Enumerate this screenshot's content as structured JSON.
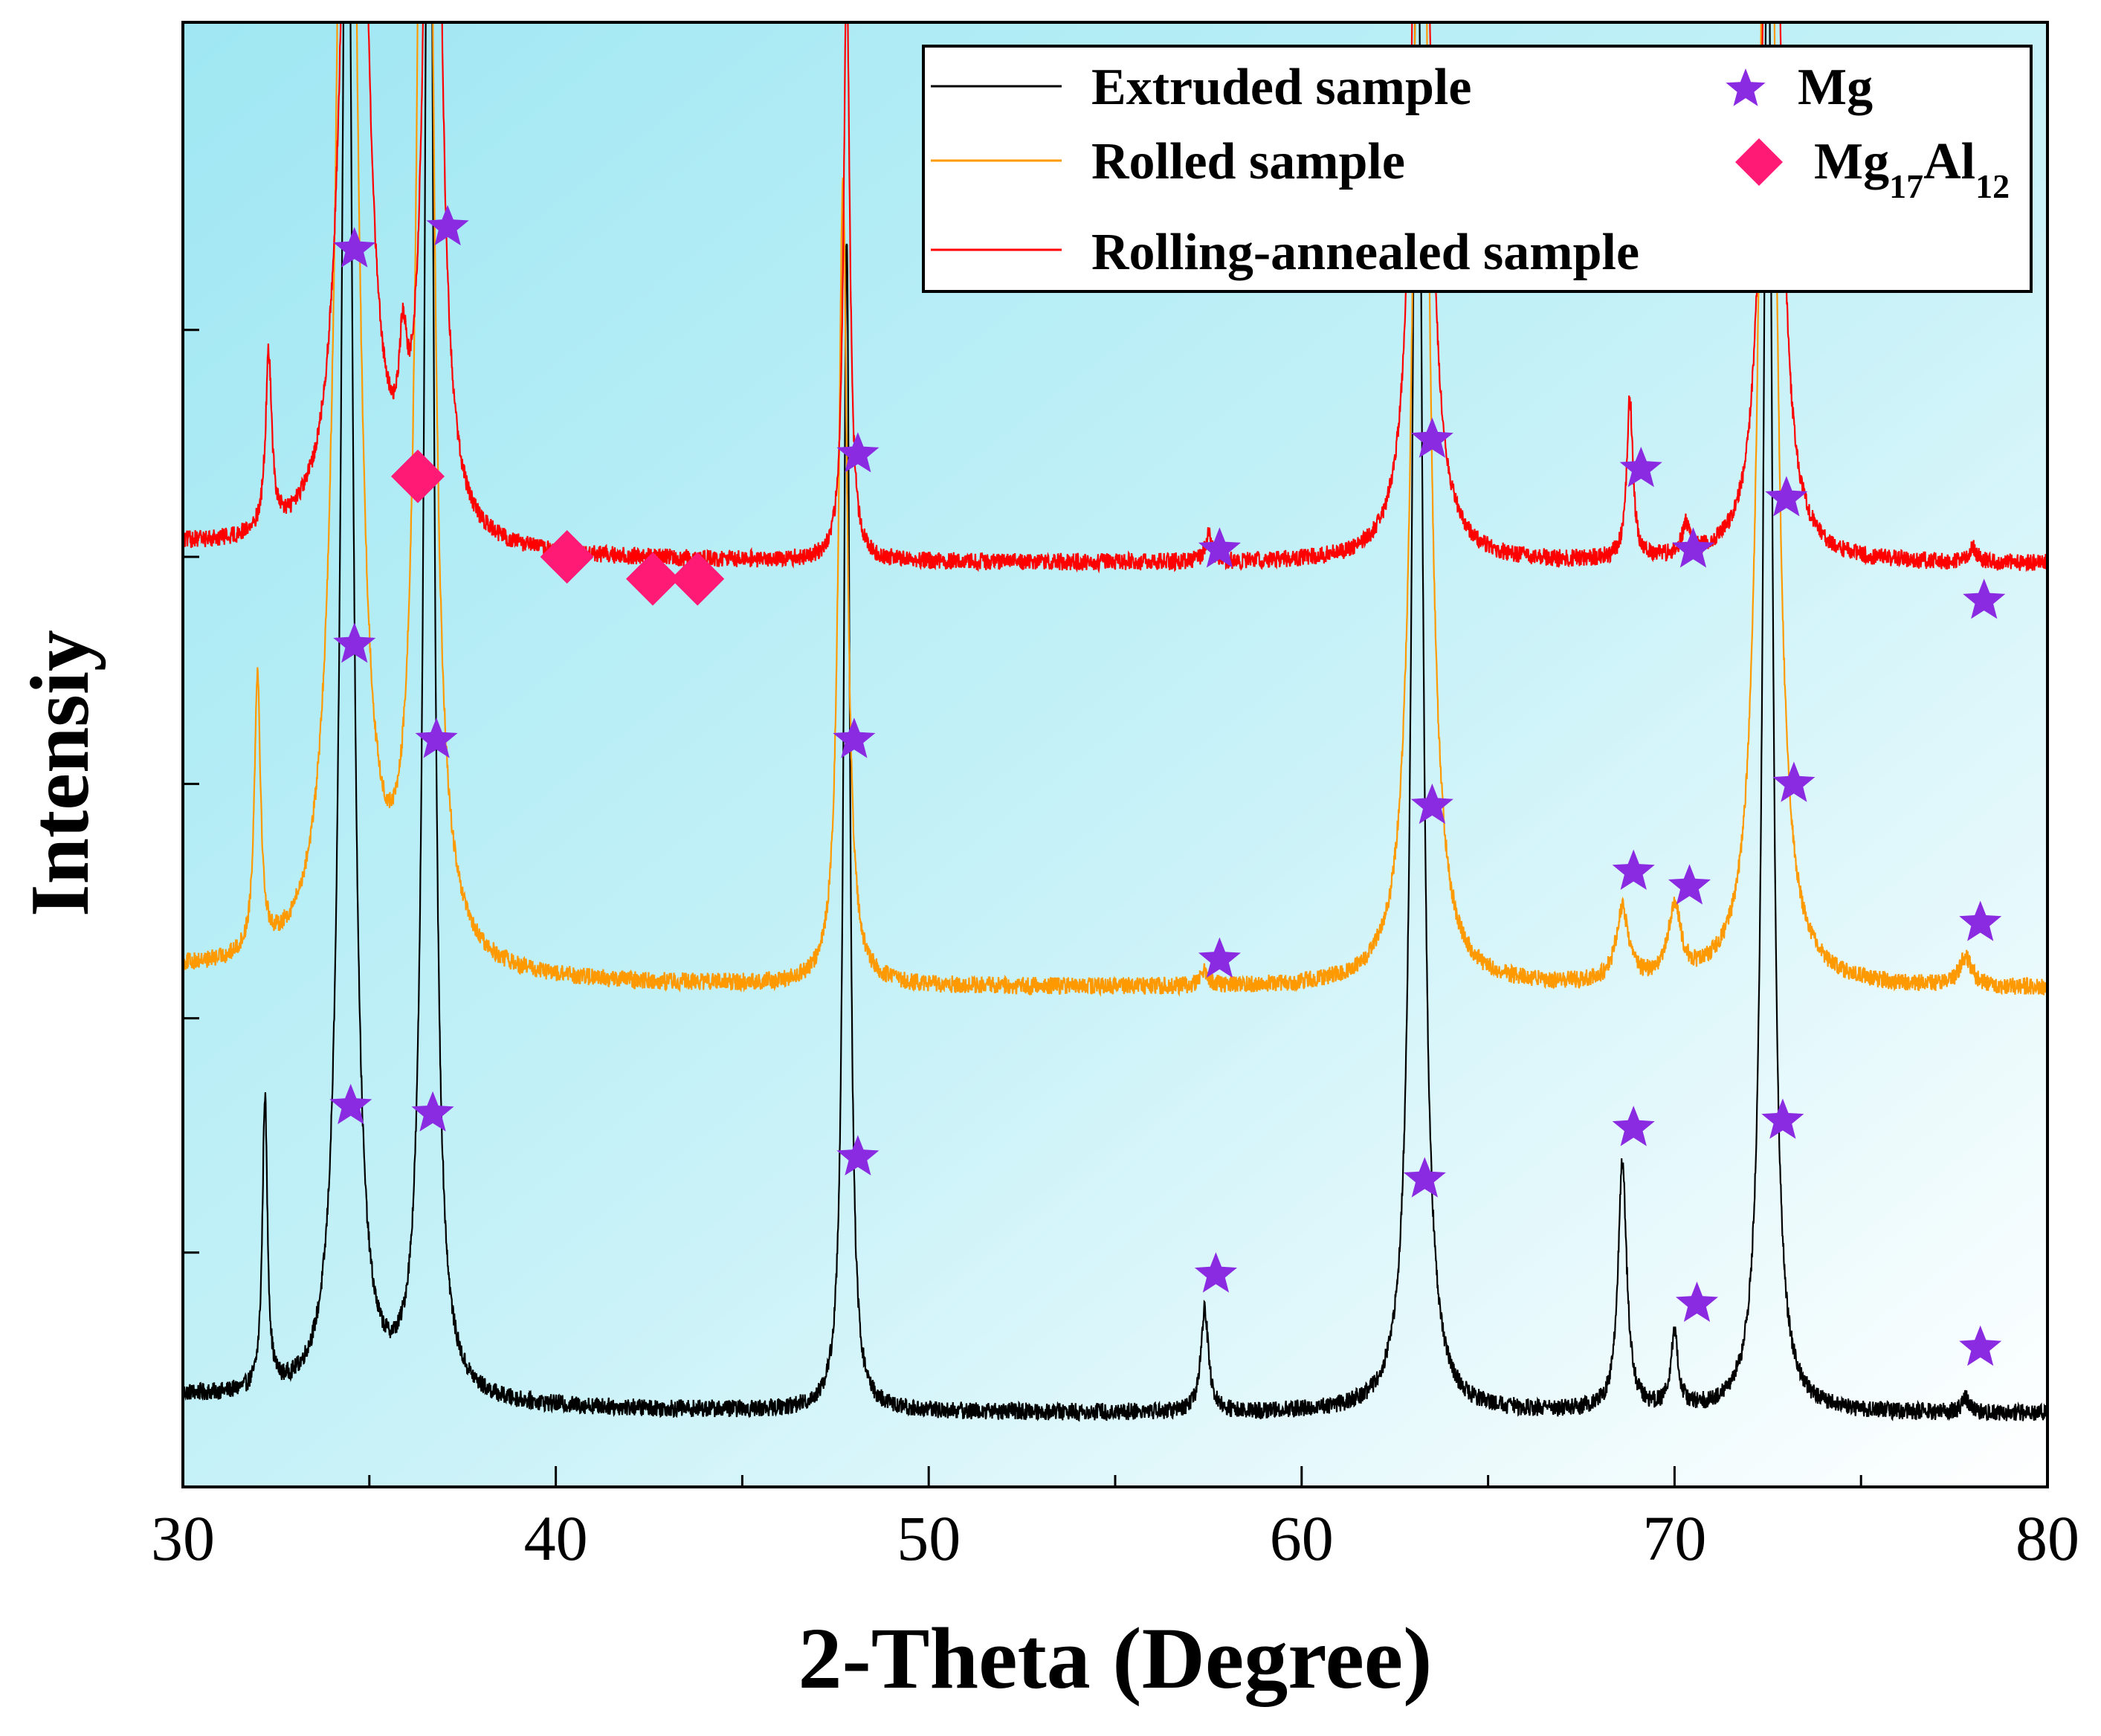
{
  "chart_data": {
    "type": "line",
    "title": "",
    "xlabel": "2-Theta (Degree)",
    "ylabel": "Intensiy",
    "xlim": [
      30,
      80
    ],
    "xticks": [
      30,
      40,
      50,
      60,
      70,
      80
    ],
    "yticks_labeled": false,
    "background": "gradient cyan to white",
    "series": [
      {
        "name": "Extruded sample",
        "color": "#000000",
        "baseline": 0.05,
        "peaks": [
          {
            "x": 32.2,
            "h": 0.2,
            "w": 0.08
          },
          {
            "x": 34.4,
            "h": 1.2,
            "w": 0.18
          },
          {
            "x": 36.6,
            "h": 1.3,
            "w": 0.14
          },
          {
            "x": 47.8,
            "h": 0.8,
            "w": 0.1
          },
          {
            "x": 57.4,
            "h": 0.07,
            "w": 0.12
          },
          {
            "x": 63.1,
            "h": 1.1,
            "w": 0.16
          },
          {
            "x": 68.6,
            "h": 0.17,
            "w": 0.14
          },
          {
            "x": 70.0,
            "h": 0.05,
            "w": 0.12
          },
          {
            "x": 72.5,
            "h": 1.1,
            "w": 0.14
          },
          {
            "x": 77.8,
            "h": 0.01,
            "w": 0.12
          }
        ]
      },
      {
        "name": "Rolled sample",
        "color": "#FF9900",
        "baseline": 0.34,
        "peaks": [
          {
            "x": 32.0,
            "h": 0.19,
            "w": 0.1
          },
          {
            "x": 34.4,
            "h": 1.2,
            "w": 0.28
          },
          {
            "x": 36.5,
            "h": 1.3,
            "w": 0.2
          },
          {
            "x": 47.7,
            "h": 0.55,
            "w": 0.14
          },
          {
            "x": 57.4,
            "h": 0.01,
            "w": 0.12
          },
          {
            "x": 63.2,
            "h": 1.0,
            "w": 0.22
          },
          {
            "x": 68.6,
            "h": 0.05,
            "w": 0.2
          },
          {
            "x": 70.0,
            "h": 0.05,
            "w": 0.2
          },
          {
            "x": 72.5,
            "h": 1.1,
            "w": 0.22
          },
          {
            "x": 77.8,
            "h": 0.02,
            "w": 0.2
          }
        ]
      },
      {
        "name": "Rolling-annealed sample",
        "color": "#FF0000",
        "baseline": 0.63,
        "peaks": [
          {
            "x": 32.3,
            "h": 0.12,
            "w": 0.1
          },
          {
            "x": 34.6,
            "h": 0.9,
            "w": 0.3
          },
          {
            "x": 35.9,
            "h": 0.07,
            "w": 0.12
          },
          {
            "x": 36.7,
            "h": 0.9,
            "w": 0.2
          },
          {
            "x": 47.8,
            "h": 0.4,
            "w": 0.1
          },
          {
            "x": 57.5,
            "h": 0.02,
            "w": 0.1
          },
          {
            "x": 63.2,
            "h": 0.8,
            "w": 0.22
          },
          {
            "x": 68.8,
            "h": 0.11,
            "w": 0.1
          },
          {
            "x": 70.3,
            "h": 0.02,
            "w": 0.12
          },
          {
            "x": 72.6,
            "h": 0.8,
            "w": 0.22
          },
          {
            "x": 78.0,
            "h": 0.01,
            "w": 0.12
          }
        ]
      }
    ],
    "annotations": {
      "Mg": [
        {
          "x": 34.6,
          "y": 0.845
        },
        {
          "x": 37.1,
          "y": 0.86
        },
        {
          "x": 48.1,
          "y": 0.705
        },
        {
          "x": 57.8,
          "y": 0.64
        },
        {
          "x": 63.5,
          "y": 0.715
        },
        {
          "x": 69.1,
          "y": 0.695
        },
        {
          "x": 70.5,
          "y": 0.64
        },
        {
          "x": 73.0,
          "y": 0.675
        },
        {
          "x": 78.3,
          "y": 0.605
        },
        {
          "x": 34.6,
          "y": 0.575
        },
        {
          "x": 36.8,
          "y": 0.51
        },
        {
          "x": 48.0,
          "y": 0.51
        },
        {
          "x": 57.8,
          "y": 0.36
        },
        {
          "x": 63.5,
          "y": 0.465
        },
        {
          "x": 68.9,
          "y": 0.42
        },
        {
          "x": 70.4,
          "y": 0.41
        },
        {
          "x": 73.2,
          "y": 0.48
        },
        {
          "x": 78.2,
          "y": 0.385
        },
        {
          "x": 34.5,
          "y": 0.26
        },
        {
          "x": 36.7,
          "y": 0.255
        },
        {
          "x": 48.1,
          "y": 0.225
        },
        {
          "x": 57.7,
          "y": 0.145
        },
        {
          "x": 63.3,
          "y": 0.21
        },
        {
          "x": 68.9,
          "y": 0.245
        },
        {
          "x": 70.6,
          "y": 0.125
        },
        {
          "x": 72.9,
          "y": 0.25
        },
        {
          "x": 78.2,
          "y": 0.095
        }
      ],
      "Mg17Al12": [
        {
          "x": 36.3,
          "y": 0.69
        },
        {
          "x": 40.3,
          "y": 0.635
        },
        {
          "x": 42.6,
          "y": 0.62
        },
        {
          "x": 43.8,
          "y": 0.62
        }
      ]
    },
    "legend": {
      "position": "top-right",
      "line_entries": [
        {
          "label": "Extruded sample",
          "color": "#000000"
        },
        {
          "label": "Rolled sample",
          "color": "#FF9900"
        },
        {
          "label": "Rolling-annealed sample",
          "color": "#FF0000"
        }
      ],
      "marker_entries": [
        {
          "label": "Mg",
          "sub": "",
          "marker": "star",
          "color": "#8A2BE2"
        },
        {
          "label": "Mg",
          "sub1": "17",
          "mid": "Al",
          "sub2": "12",
          "marker": "diamond",
          "color": "#FF1A75"
        }
      ]
    },
    "colors": {
      "star": "#8A2BE2",
      "diamond": "#FF1A75"
    }
  }
}
